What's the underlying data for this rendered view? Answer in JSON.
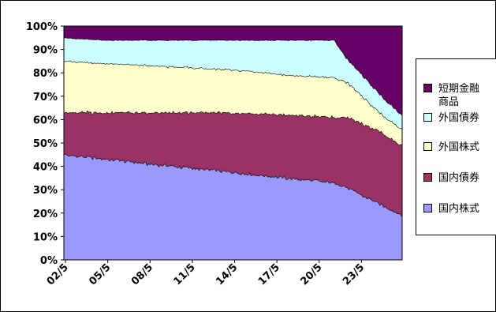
{
  "chart_data": {
    "type": "area",
    "stacked": true,
    "stack_mode": "percent",
    "x_tick_labels": [
      "02/5",
      "05/5",
      "08/5",
      "11/5",
      "14/5",
      "17/5",
      "20/5",
      "23/5"
    ],
    "y_tick_labels": [
      "0%",
      "10%",
      "20%",
      "30%",
      "40%",
      "50%",
      "60%",
      "70%",
      "80%",
      "90%",
      "100%"
    ],
    "ylim": [
      0,
      100
    ],
    "x": [
      "2002-05",
      "2005-05",
      "2008-05",
      "2011-05",
      "2014-05",
      "2017-05",
      "2020-05",
      "2021-03",
      "2023-05",
      "2024-11"
    ],
    "series": [
      {
        "name": "国内株式",
        "color": "#9999ff",
        "values": [
          45,
          43,
          41,
          39,
          37,
          35,
          33,
          31,
          24,
          19
        ]
      },
      {
        "name": "国内債券",
        "color": "#993366",
        "values": [
          18,
          20,
          22,
          24,
          26,
          27,
          28,
          30,
          31,
          30
        ]
      },
      {
        "name": "外国株式",
        "color": "#ffffcc",
        "values": [
          22,
          21,
          20,
          19,
          18,
          17,
          17,
          15,
          8,
          7
        ]
      },
      {
        "name": "外国債券",
        "color": "#ccffff",
        "values": [
          10,
          10,
          11,
          12,
          13,
          15,
          16,
          10,
          8,
          6
        ]
      },
      {
        "name": "短期金融商品",
        "color": "#660066",
        "values": [
          5,
          6,
          6,
          6,
          6,
          6,
          6,
          14,
          29,
          38
        ]
      }
    ],
    "legend": {
      "placement": "right",
      "items": [
        {
          "label_lines": [
            "短期金融",
            "商品"
          ],
          "color": "#660066"
        },
        {
          "label_lines": [
            "外国債券"
          ],
          "color": "#ccffff"
        },
        {
          "label_lines": [
            "外国株式"
          ],
          "color": "#ffffcc"
        },
        {
          "label_lines": [
            "国内債券"
          ],
          "color": "#993366"
        },
        {
          "label_lines": [
            "国内株式"
          ],
          "color": "#9999ff"
        }
      ]
    },
    "grid": false
  }
}
